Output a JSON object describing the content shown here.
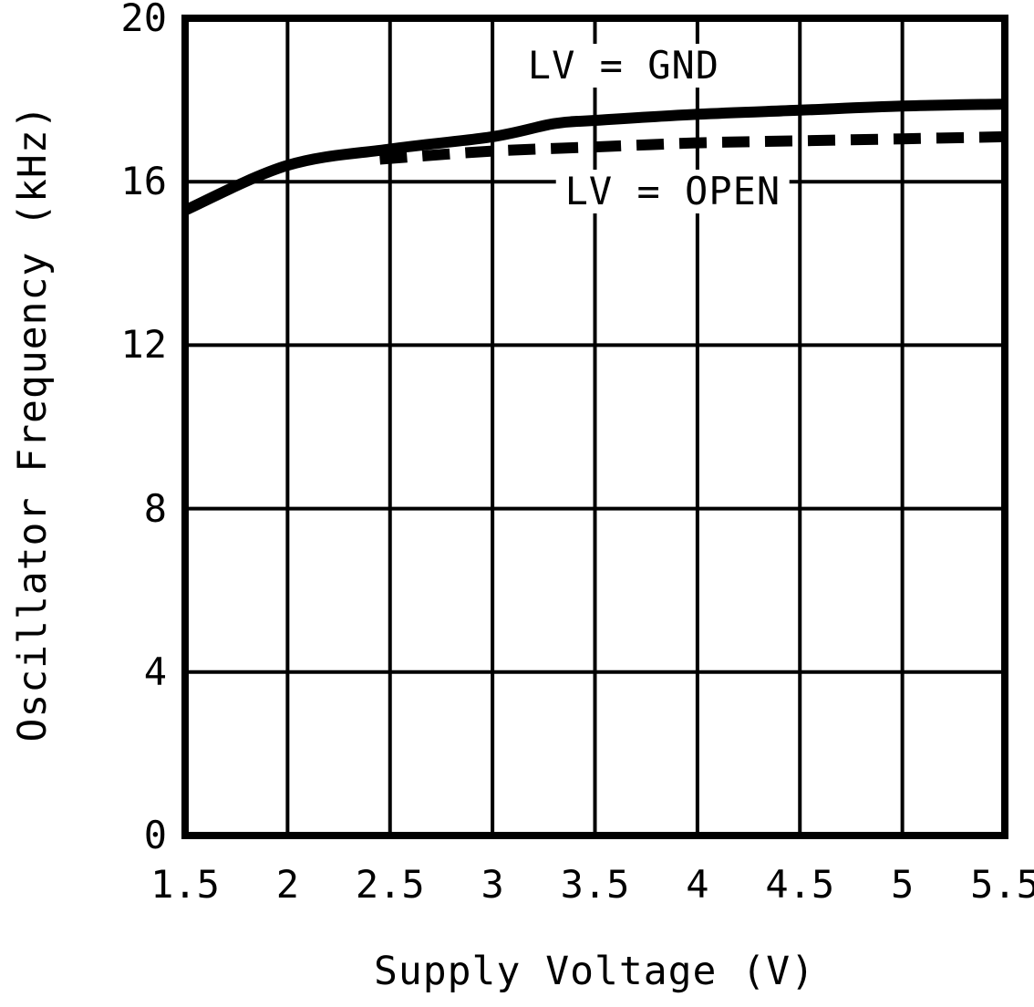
{
  "chart_data": {
    "type": "line",
    "title": "",
    "xlabel": "Supply Voltage (V)",
    "ylabel": "Oscillator Frequency (kHz)",
    "xlim": [
      1.5,
      5.5
    ],
    "ylim": [
      0,
      20
    ],
    "grid": true,
    "xticks": [
      "1.5",
      "2",
      "2.5",
      "3",
      "3.5",
      "4",
      "4.5",
      "5",
      "5.5"
    ],
    "yticks": [
      "0",
      "4",
      "8",
      "12",
      "16",
      "20"
    ],
    "series": [
      {
        "name": "LV = GND",
        "style": "solid",
        "x": [
          1.5,
          2.0,
          2.5,
          3.0,
          3.3,
          3.5,
          4.0,
          4.5,
          5.0,
          5.5
        ],
        "y": [
          15.3,
          16.4,
          16.8,
          17.1,
          17.42,
          17.5,
          17.65,
          17.75,
          17.85,
          17.9
        ]
      },
      {
        "name": "LV = OPEN",
        "style": "dashed",
        "x": [
          2.45,
          3.0,
          3.5,
          4.0,
          4.5,
          5.0,
          5.5
        ],
        "y": [
          16.55,
          16.75,
          16.85,
          16.95,
          17.0,
          17.05,
          17.1
        ]
      }
    ],
    "annotations": [
      {
        "text": "LV = GND",
        "x": 3.64,
        "y": 18.85
      },
      {
        "text": "LV = OPEN",
        "x": 3.88,
        "y": 15.76
      }
    ],
    "colors": {
      "stroke": "#000000",
      "background": "#ffffff"
    }
  }
}
